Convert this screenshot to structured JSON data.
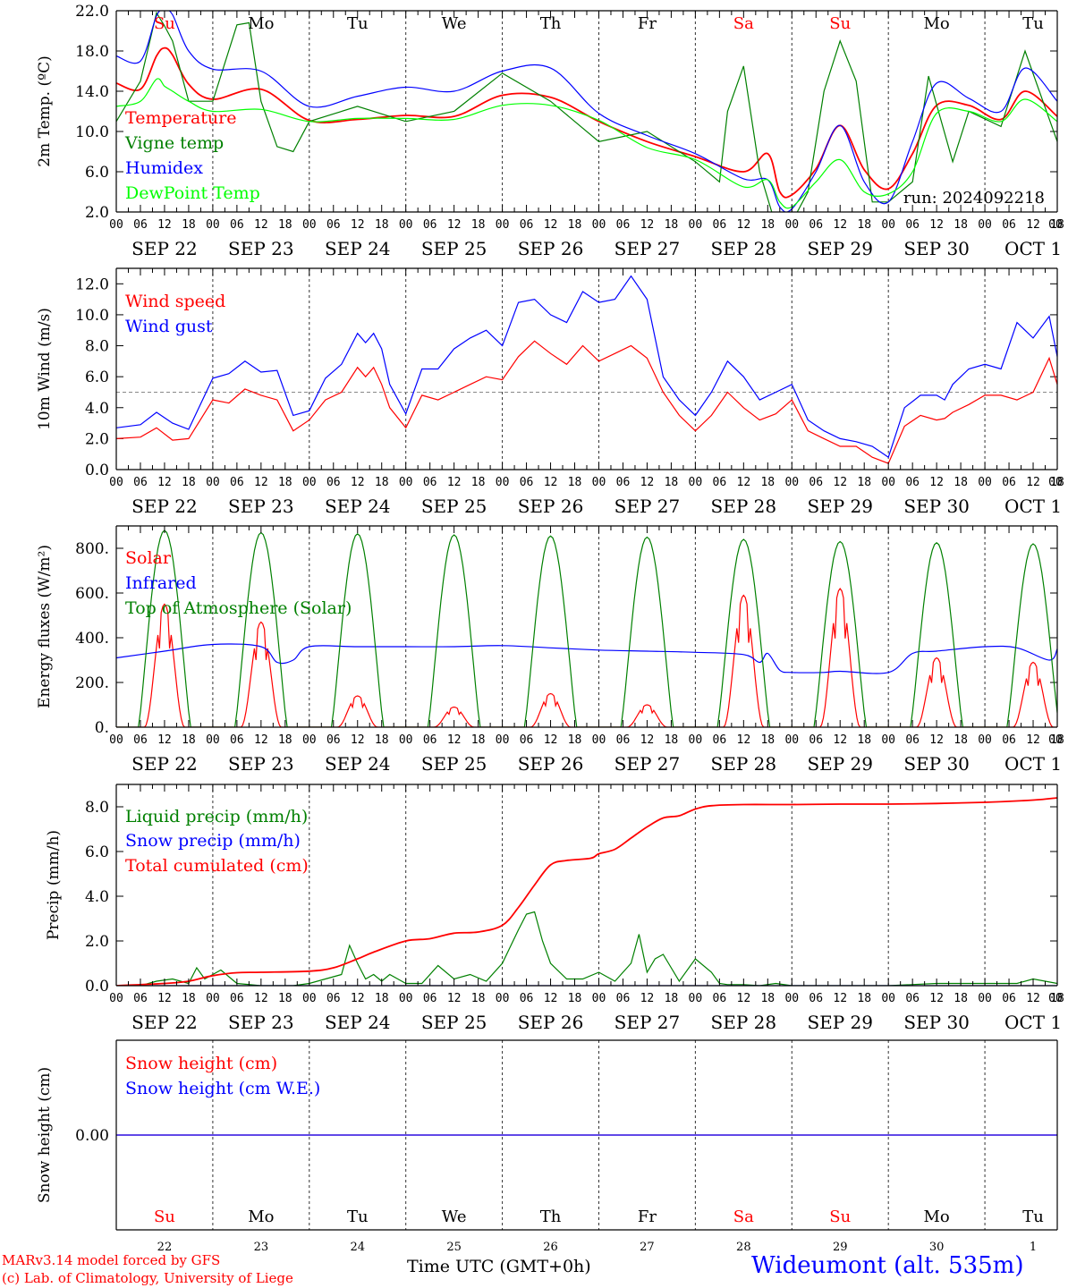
{
  "days": {
    "weekday_labels": [
      "Su",
      "Mo",
      "Tu",
      "We",
      "Th",
      "Fr",
      "Sa",
      "Su",
      "Mo",
      "Tu"
    ],
    "weekday_colors": [
      "#ff0000",
      "#000000",
      "#000000",
      "#000000",
      "#000000",
      "#000000",
      "#ff0000",
      "#ff0000",
      "#000000",
      "#000000"
    ],
    "date_labels": [
      "SEP 22",
      "SEP 23",
      "SEP 24",
      "SEP 25",
      "SEP 26",
      "SEP 27",
      "SEP 28",
      "SEP 29",
      "SEP 30",
      "OCT  1"
    ],
    "day_numbers": [
      "22",
      "23",
      "24",
      "25",
      "26",
      "27",
      "28",
      "29",
      "30",
      "1"
    ],
    "hour_labels": [
      "00",
      "06",
      "12",
      "18"
    ]
  },
  "run_label": "run: 2024092218",
  "footer": {
    "model": "MARv3.14 model forced by GFS",
    "lab": "(c) Lab. of Climatology, University of Liege",
    "xlabel": "Time UTC (GMT+0h)",
    "station": "Wideumont (alt. 535m)"
  },
  "chart_data": [
    {
      "type": "line",
      "ylabel": "2m Temp. (ºC)",
      "ylim": [
        2.0,
        22.0
      ],
      "yticks": [
        "2.0",
        "6.0",
        "10.0",
        "14.0",
        "18.0",
        "22.0"
      ],
      "x_unit": "hours since SEP 22 00 UTC",
      "series": [
        {
          "name": "Temperature",
          "color": "#ff0000",
          "x": [
            0,
            6,
            10,
            12,
            14,
            18,
            24,
            36,
            48,
            60,
            72,
            84,
            96,
            108,
            120,
            132,
            144,
            156,
            162,
            165,
            168,
            174,
            180,
            186,
            192,
            198,
            204,
            212,
            220,
            226,
            234
          ],
          "y": [
            14.8,
            14.2,
            17.5,
            18.3,
            17.6,
            14.7,
            13.2,
            14.2,
            11.1,
            11.2,
            11.6,
            11.5,
            13.6,
            13.4,
            11.0,
            9.0,
            7.5,
            6.0,
            7.8,
            4.0,
            3.7,
            6.3,
            10.6,
            6.2,
            4.3,
            7.8,
            12.6,
            12.6,
            11.2,
            14.0,
            11.5
          ]
        },
        {
          "name": "Vigne temp",
          "color": "#008000",
          "x": [
            0,
            6,
            10,
            12,
            14,
            18,
            24,
            30,
            33,
            36,
            40,
            44,
            48,
            60,
            72,
            84,
            96,
            108,
            120,
            132,
            144,
            150,
            152,
            156,
            160,
            163,
            165,
            168,
            172,
            176,
            180,
            184,
            188,
            192,
            198,
            202,
            208,
            212,
            220,
            226,
            234
          ],
          "y": [
            11.0,
            15.0,
            21.8,
            20.5,
            19.0,
            13.0,
            13.0,
            20.6,
            20.8,
            13.0,
            8.5,
            8.0,
            11.0,
            12.5,
            11.0,
            12.0,
            15.8,
            13.0,
            9.0,
            10.0,
            7.0,
            5.0,
            12.0,
            16.5,
            6.0,
            2.0,
            1.0,
            1.0,
            4.0,
            14.0,
            19.0,
            15.0,
            3.0,
            3.0,
            5.0,
            15.5,
            7.0,
            12.0,
            10.5,
            18.0,
            9.0
          ]
        },
        {
          "name": "Humidex",
          "color": "#0000ff",
          "x": [
            0,
            6,
            10,
            12,
            14,
            18,
            24,
            36,
            48,
            60,
            72,
            84,
            96,
            108,
            120,
            132,
            144,
            156,
            162,
            165,
            168,
            174,
            180,
            186,
            192,
            198,
            204,
            212,
            220,
            226,
            234
          ],
          "y": [
            17.5,
            17.0,
            21.5,
            22.0,
            21.6,
            18.0,
            16.2,
            16.0,
            12.5,
            13.5,
            14.4,
            14.0,
            16.0,
            16.3,
            11.8,
            9.6,
            7.8,
            5.3,
            5.2,
            2.5,
            2.3,
            6.0,
            10.6,
            5.0,
            3.0,
            9.0,
            14.8,
            13.3,
            12.0,
            16.3,
            13.0
          ]
        },
        {
          "name": "DewPoint Temp",
          "color": "#00ff00",
          "x": [
            0,
            6,
            10,
            12,
            14,
            18,
            24,
            36,
            48,
            60,
            72,
            84,
            96,
            108,
            120,
            132,
            144,
            156,
            162,
            165,
            168,
            174,
            180,
            186,
            192,
            198,
            204,
            212,
            220,
            226,
            234
          ],
          "y": [
            12.5,
            13.0,
            15.2,
            14.5,
            14.0,
            13.0,
            12.0,
            12.2,
            11.0,
            11.3,
            11.3,
            11.2,
            12.6,
            12.6,
            11.1,
            8.4,
            7.2,
            4.5,
            5.2,
            3.0,
            2.5,
            5.0,
            7.2,
            4.0,
            3.8,
            6.0,
            11.8,
            12.0,
            11.0,
            13.2,
            11.0
          ]
        }
      ]
    },
    {
      "type": "line",
      "ylabel": "10m Wind (m/s)",
      "ylim": [
        0,
        13
      ],
      "yticks": [
        "0.0",
        "2.0",
        "4.0",
        "6.0",
        "8.0",
        "10.0",
        "12.0"
      ],
      "threshold": 5.0,
      "series": [
        {
          "name": "Wind speed",
          "color": "#ff0000",
          "x": [
            0,
            6,
            10,
            14,
            18,
            24,
            28,
            32,
            36,
            40,
            44,
            48,
            52,
            56,
            60,
            62,
            64,
            66,
            68,
            72,
            76,
            80,
            84,
            88,
            92,
            96,
            100,
            104,
            108,
            112,
            116,
            120,
            124,
            128,
            132,
            136,
            140,
            144,
            148,
            152,
            156,
            160,
            164,
            168,
            172,
            176,
            180,
            184,
            188,
            192,
            196,
            200,
            204,
            206,
            208,
            212,
            216,
            220,
            224,
            228,
            232,
            234
          ],
          "y": [
            2.0,
            2.1,
            2.7,
            1.9,
            2.0,
            4.5,
            4.3,
            5.2,
            4.8,
            4.5,
            2.5,
            3.2,
            4.5,
            5.0,
            6.6,
            6.0,
            6.6,
            5.5,
            4.0,
            2.7,
            4.8,
            4.5,
            5.0,
            5.5,
            6.0,
            5.8,
            7.3,
            8.3,
            7.5,
            6.8,
            8.0,
            7.0,
            7.5,
            8.0,
            7.2,
            5.0,
            3.5,
            2.5,
            3.5,
            5.0,
            4.0,
            3.2,
            3.6,
            4.5,
            2.5,
            2.0,
            1.5,
            1.5,
            0.8,
            0.4,
            2.8,
            3.5,
            3.2,
            3.3,
            3.7,
            4.2,
            4.8,
            4.8,
            4.5,
            5.0,
            7.2,
            5.5
          ]
        },
        {
          "name": "Wind gust",
          "color": "#0000ff",
          "x": [
            0,
            6,
            10,
            14,
            18,
            24,
            28,
            32,
            36,
            40,
            44,
            48,
            52,
            56,
            60,
            62,
            64,
            66,
            68,
            72,
            76,
            80,
            84,
            88,
            92,
            96,
            100,
            104,
            108,
            112,
            116,
            120,
            124,
            128,
            132,
            136,
            140,
            144,
            148,
            152,
            156,
            160,
            164,
            168,
            172,
            176,
            180,
            184,
            188,
            192,
            196,
            200,
            204,
            206,
            208,
            212,
            216,
            220,
            224,
            228,
            232,
            234
          ],
          "y": [
            2.7,
            2.9,
            3.7,
            3.0,
            2.6,
            5.9,
            6.2,
            7.0,
            6.3,
            6.4,
            3.5,
            3.8,
            5.9,
            6.8,
            8.8,
            8.2,
            8.8,
            7.8,
            5.5,
            3.6,
            6.5,
            6.5,
            7.8,
            8.5,
            9.0,
            8.0,
            10.8,
            11.0,
            10.0,
            9.5,
            11.5,
            10.8,
            11.0,
            12.5,
            11.0,
            6.0,
            4.5,
            3.5,
            5.0,
            7.0,
            6.0,
            4.5,
            5.0,
            5.5,
            3.2,
            2.5,
            2.0,
            1.8,
            1.5,
            0.8,
            4.0,
            4.8,
            4.8,
            4.5,
            5.5,
            6.5,
            6.8,
            6.5,
            9.5,
            8.5,
            9.9,
            7.3
          ]
        }
      ]
    },
    {
      "type": "line",
      "ylabel": "Energy fluxes (W/m²)",
      "ylim": [
        0,
        900
      ],
      "yticks": [
        "0.",
        "200.",
        "400.",
        "600.",
        "800."
      ],
      "series": [
        {
          "name": "Solar",
          "color": "#ff0000",
          "peaks": [
            550,
            470,
            140,
            90,
            150,
            100,
            590,
            620,
            310,
            290
          ]
        },
        {
          "name": "Infrared",
          "color": "#0000ff",
          "x": [
            0,
            12,
            24,
            36,
            40,
            44,
            48,
            60,
            72,
            84,
            96,
            108,
            120,
            132,
            144,
            156,
            160,
            162,
            165,
            168,
            176,
            180,
            192,
            198,
            204,
            216,
            224,
            232,
            234
          ],
          "y": [
            310,
            340,
            370,
            360,
            290,
            300,
            360,
            360,
            360,
            360,
            365,
            355,
            345,
            340,
            335,
            325,
            290,
            330,
            255,
            245,
            245,
            250,
            245,
            330,
            340,
            360,
            355,
            300,
            350
          ]
        },
        {
          "name": "Top of Atmosphere (Solar)",
          "color": "#008000",
          "peaks": [
            880,
            870,
            865,
            860,
            855,
            850,
            840,
            830,
            825,
            820
          ]
        }
      ]
    },
    {
      "type": "line",
      "ylabel": "Precip (mm/h)",
      "ylim": [
        0,
        9
      ],
      "yticks": [
        "0.0",
        "2.0",
        "4.0",
        "6.0",
        "8.0"
      ],
      "series": [
        {
          "name": "Liquid precip (mm/h)",
          "color": "#008000",
          "x": [
            0,
            6,
            10,
            14,
            18,
            20,
            22,
            24,
            26,
            30,
            36,
            40,
            44,
            48,
            52,
            56,
            58,
            60,
            62,
            64,
            66,
            68,
            70,
            72,
            76,
            80,
            84,
            88,
            92,
            96,
            100,
            102,
            104,
            106,
            108,
            112,
            116,
            120,
            124,
            128,
            130,
            132,
            134,
            136,
            140,
            144,
            148,
            150,
            152,
            156,
            160,
            164,
            168,
            180,
            192,
            204,
            216,
            224,
            228,
            234
          ],
          "y": [
            0,
            0,
            0.2,
            0.3,
            0.1,
            0.8,
            0.3,
            0.5,
            0.7,
            0.1,
            0,
            0,
            0,
            0.1,
            0.3,
            0.5,
            1.8,
            1.0,
            0.3,
            0.5,
            0.2,
            0.5,
            0.3,
            0.1,
            0.1,
            0.9,
            0.3,
            0.5,
            0.2,
            1.0,
            2.5,
            3.2,
            3.3,
            2.0,
            1.0,
            0.3,
            0.3,
            0.6,
            0.2,
            1.0,
            2.3,
            0.6,
            1.2,
            1.4,
            0.2,
            1.2,
            0.6,
            0.1,
            0.05,
            0.05,
            0,
            0.1,
            0,
            0,
            0,
            0.1,
            0.1,
            0.1,
            0.3,
            0.1
          ]
        },
        {
          "name": "Snow precip (mm/h)",
          "color": "#0000ff",
          "x": [
            0,
            234
          ],
          "y": [
            0,
            0
          ]
        },
        {
          "name": "Total cumulated (cm)",
          "color": "#ff0000",
          "x": [
            0,
            12,
            18,
            24,
            30,
            36,
            48,
            54,
            60,
            64,
            72,
            78,
            84,
            90,
            96,
            100,
            104,
            108,
            112,
            118,
            120,
            124,
            128,
            132,
            136,
            140,
            144,
            148,
            156,
            168,
            180,
            192,
            204,
            216,
            228,
            234
          ],
          "y": [
            0,
            0.1,
            0.2,
            0.45,
            0.58,
            0.6,
            0.65,
            0.8,
            1.2,
            1.5,
            2.0,
            2.1,
            2.35,
            2.4,
            2.7,
            3.5,
            4.5,
            5.4,
            5.6,
            5.7,
            5.9,
            6.1,
            6.6,
            7.1,
            7.5,
            7.6,
            7.9,
            8.05,
            8.1,
            8.1,
            8.12,
            8.12,
            8.15,
            8.2,
            8.3,
            8.4
          ]
        }
      ]
    },
    {
      "type": "line",
      "ylabel": "Snow height (cm)",
      "yticks": [
        "0.00"
      ],
      "series": [
        {
          "name": "Snow height (cm)",
          "color": "#ff0000",
          "x": [
            0,
            234
          ],
          "y": [
            0,
            0
          ]
        },
        {
          "name": "Snow height (cm W.E.)",
          "color": "#0000ff",
          "x": [
            0,
            234
          ],
          "y": [
            0,
            0
          ]
        }
      ]
    }
  ]
}
